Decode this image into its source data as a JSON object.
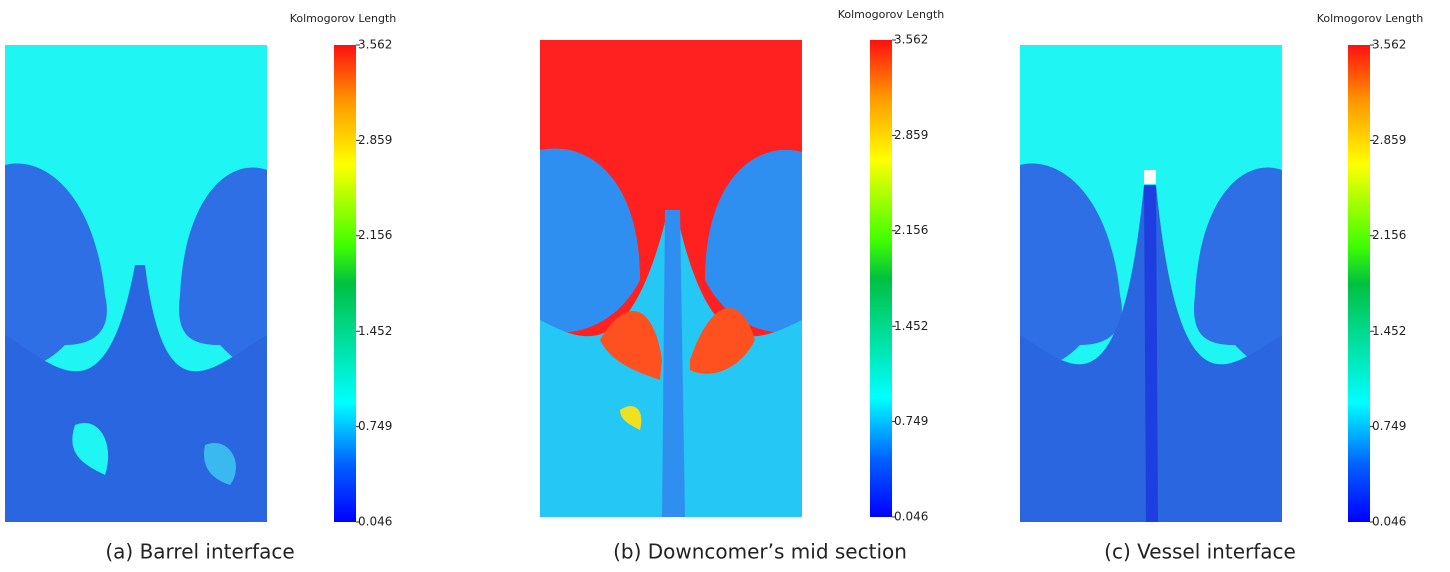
{
  "panels": [
    {
      "caption": "(a) Barrel interface",
      "colorbar": {
        "title": "Kolmogorov Length",
        "ticks": [
          0.046,
          0.749,
          1.452,
          2.156,
          2.859,
          3.562
        ]
      }
    },
    {
      "caption": "(b) Downcomer’s mid section",
      "colorbar": {
        "title": "Kolmogorov Length",
        "ticks": [
          0.046,
          0.749,
          1.452,
          2.156,
          2.859,
          3.562
        ]
      }
    },
    {
      "caption": "(c) Vessel interface",
      "colorbar": {
        "title": "Kolmogorov Length",
        "ticks": [
          0.046,
          0.749,
          1.452,
          2.156,
          2.859,
          3.562
        ]
      }
    }
  ]
}
